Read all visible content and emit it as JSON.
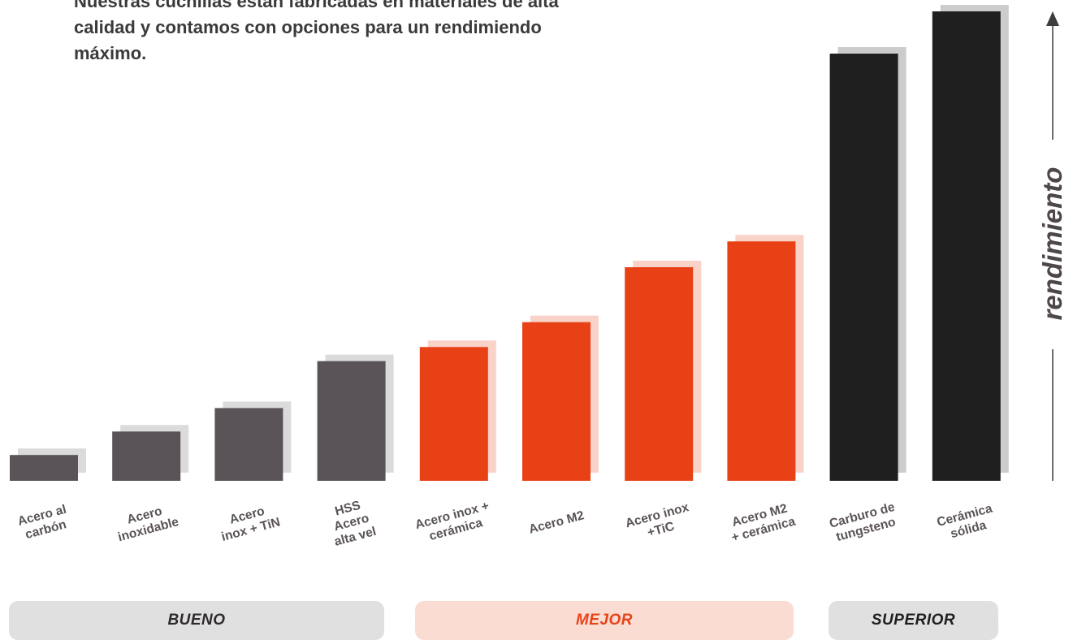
{
  "intro_text": "Nuestras cuchillas están fabricadas en materiales de alta calidad y contamos con opciones para un rendimiendo máximo.",
  "axis_label": "rendimiento",
  "tiers": {
    "good": "BUENO",
    "better": "MEJOR",
    "superior": "SUPERIOR"
  },
  "colors": {
    "good": "#5a5458",
    "better": "#e84115",
    "superior": "#1f1f1f",
    "shadow_good": "#dcdbdb",
    "shadow_better": "#f9d3c8",
    "shadow_superior": "#cccccc"
  },
  "chart_data": {
    "type": "bar",
    "title": "",
    "xlabel": "",
    "ylabel": "rendimiento",
    "ylim": [
      0,
      100
    ],
    "grid": false,
    "legend": "none",
    "categories": [
      "Acero al carbón",
      "Acero inoxidable",
      "Acero inox + TiN",
      "HSS Acero alta vel",
      "Acero inox + cerámica",
      "Acero M2",
      "Acero inox +TiC",
      "Acero M2 + cerámica",
      "Carburo de tungsteno",
      "Cerámica sólida"
    ],
    "label_lines": [
      [
        "Acero al",
        "carbón"
      ],
      [
        "Acero",
        "inoxidable"
      ],
      [
        "Acero",
        "inox + TiN"
      ],
      [
        "HSS",
        "Acero",
        "alta vel"
      ],
      [
        "Acero inox +",
        "cerámica"
      ],
      [
        "Acero M2"
      ],
      [
        "Acero inox",
        "+TiC"
      ],
      [
        "Acero M2",
        "+ cerámica"
      ],
      [
        "Carburo de",
        "tungsteno"
      ],
      [
        "Cerámica",
        "sólida"
      ]
    ],
    "tiers": [
      "good",
      "good",
      "good",
      "good",
      "better",
      "better",
      "better",
      "better",
      "superior",
      "superior"
    ],
    "values": [
      5.5,
      10.5,
      15.5,
      25.5,
      28.5,
      33.8,
      45.5,
      51,
      91,
      100
    ]
  }
}
